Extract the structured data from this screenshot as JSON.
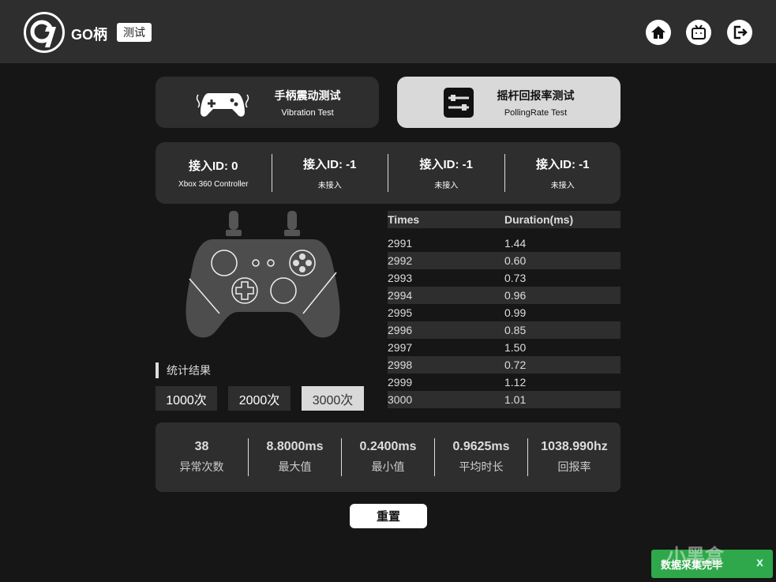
{
  "header": {
    "brand": "GO柄",
    "tag": "测试",
    "icons": [
      "home-icon",
      "bilibili-tv-icon",
      "logout-icon"
    ]
  },
  "modes": [
    {
      "title": "手柄震动测试",
      "subtitle": "Vibration Test",
      "icon": "vibrating-gamepad-icon",
      "active": false
    },
    {
      "title": "摇杆回报率测试",
      "subtitle": "PollingRate Test",
      "icon": "sliders-icon",
      "active": true
    }
  ],
  "ids": [
    {
      "label": "接入ID: 0",
      "status": "Xbox 360 Controller"
    },
    {
      "label": "接入ID: -1",
      "status": "未接入"
    },
    {
      "label": "接入ID: -1",
      "status": "未接入"
    },
    {
      "label": "接入ID: -1",
      "status": "未接入"
    }
  ],
  "table": {
    "headers": [
      "Times",
      "Duration(ms)"
    ],
    "rows": [
      [
        "2991",
        "1.44"
      ],
      [
        "2992",
        "0.60"
      ],
      [
        "2993",
        "0.73"
      ],
      [
        "2994",
        "0.96"
      ],
      [
        "2995",
        "0.99"
      ],
      [
        "2996",
        "0.85"
      ],
      [
        "2997",
        "1.50"
      ],
      [
        "2998",
        "0.72"
      ],
      [
        "2999",
        "1.12"
      ],
      [
        "3000",
        "1.01"
      ]
    ]
  },
  "stats_label": "统计结果",
  "counts": [
    {
      "label": "1000次",
      "selected": false
    },
    {
      "label": "2000次",
      "selected": false
    },
    {
      "label": "3000次",
      "selected": true
    }
  ],
  "stats": [
    {
      "value": "38",
      "label": "异常次数"
    },
    {
      "value": "8.8000ms",
      "label": "最大值"
    },
    {
      "value": "0.2400ms",
      "label": "最小值"
    },
    {
      "value": "0.9625ms",
      "label": "平均时长"
    },
    {
      "value": "1038.990hz",
      "label": "回报率"
    }
  ],
  "reset_label": "重置",
  "toast": {
    "message": "数据采集完毕",
    "close": "x",
    "color": "#2ea84a"
  },
  "watermark": "小黑盒"
}
